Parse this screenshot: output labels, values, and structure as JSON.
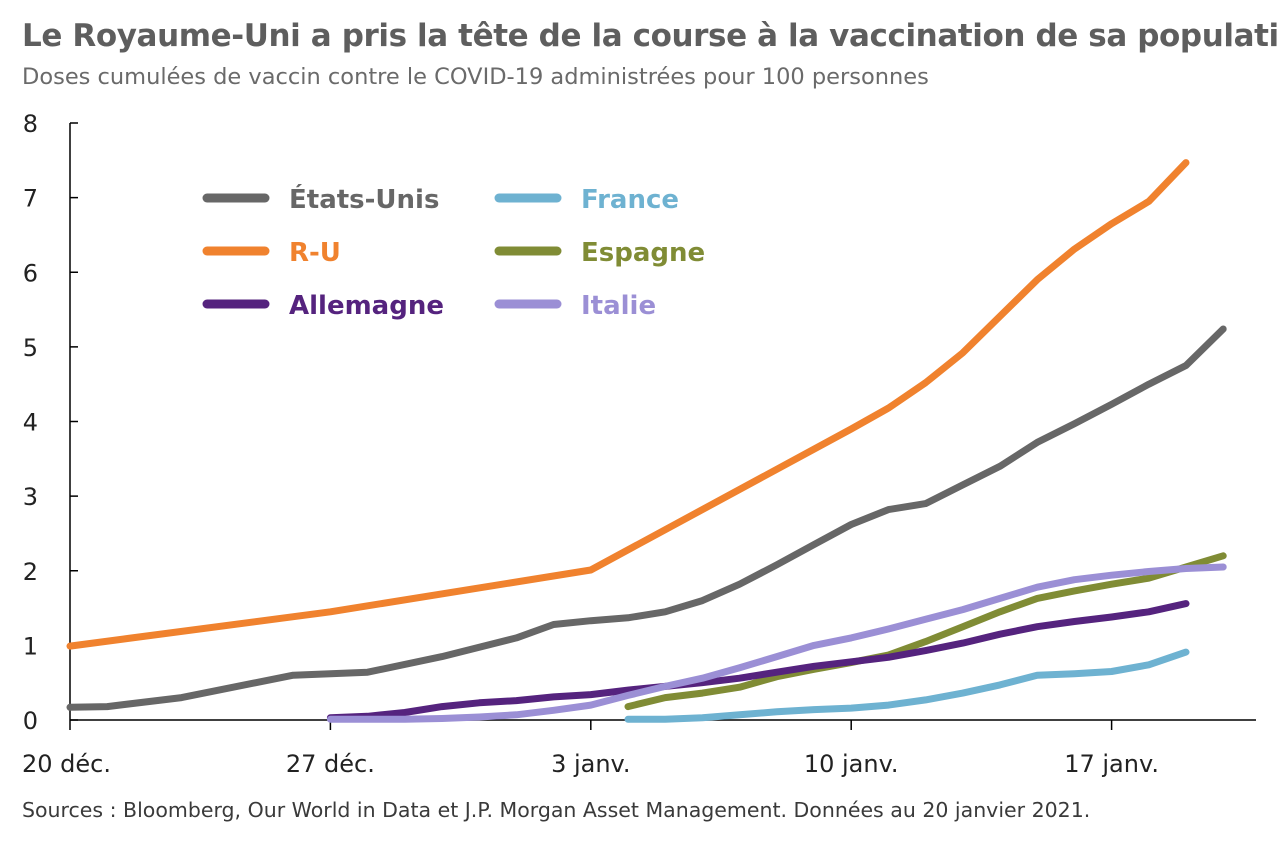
{
  "header": {
    "title": "Le Royaume-Uni a pris la tête de la course à la vaccination de sa population",
    "subtitle": "Doses cumulées de vaccin contre le COVID-19 administrées pour 100 personnes"
  },
  "footer": {
    "source": "Sources : Bloomberg, Our World in Data et J.P. Morgan Asset Management. Données au 20 janvier 2021."
  },
  "chart_data": {
    "type": "line",
    "title": "Le Royaume-Uni a pris la tête de la course à la vaccination de sa population",
    "subtitle": "Doses cumulées de vaccin contre le COVID-19 administrées pour 100 personnes",
    "xlabel": "",
    "ylabel": "",
    "x_unit": "jours depuis le 20 déc. 2020",
    "xlim": [
      0,
      31
    ],
    "ylim": [
      0,
      8
    ],
    "y_ticks": [
      0,
      1,
      2,
      3,
      4,
      5,
      6,
      7,
      8
    ],
    "x_ticks": [
      {
        "value": 0,
        "label": "20 déc."
      },
      {
        "value": 7,
        "label": "27 déc."
      },
      {
        "value": 14,
        "label": "3 janv."
      },
      {
        "value": 21,
        "label": "10 janv."
      },
      {
        "value": 28,
        "label": "17 janv."
      }
    ],
    "legend_position": "top-left",
    "series": [
      {
        "name": "États-Unis",
        "color": "#676767",
        "legend_col": 0,
        "legend_row": 0,
        "x": [
          0,
          1,
          3,
          6,
          7,
          8,
          10,
          12,
          13,
          14,
          15,
          16,
          17,
          18,
          19,
          20,
          21,
          22,
          23,
          24,
          25,
          26,
          27,
          28,
          29,
          30,
          31
        ],
        "values": [
          0.17,
          0.18,
          0.3,
          0.6,
          0.62,
          0.64,
          0.85,
          1.1,
          1.28,
          1.33,
          1.37,
          1.45,
          1.6,
          1.82,
          2.08,
          2.35,
          2.62,
          2.82,
          2.9,
          3.15,
          3.4,
          3.72,
          3.97,
          4.23,
          4.5,
          4.75,
          5.24
        ]
      },
      {
        "name": "R-U",
        "color": "#f0822e",
        "legend_col": 0,
        "legend_row": 1,
        "x": [
          0,
          7,
          14,
          21,
          22,
          23,
          24,
          25,
          26,
          27,
          28,
          29,
          30
        ],
        "values": [
          0.99,
          1.45,
          2.01,
          3.9,
          4.18,
          4.52,
          4.92,
          5.41,
          5.9,
          6.31,
          6.65,
          6.95,
          7.47
        ]
      },
      {
        "name": "Allemagne",
        "color": "#55237e",
        "legend_col": 0,
        "legend_row": 2,
        "x": [
          7,
          8,
          9,
          10,
          11,
          12,
          13,
          14,
          15,
          16,
          17,
          18,
          19,
          20,
          21,
          22,
          23,
          24,
          25,
          26,
          27,
          28,
          29,
          30
        ],
        "values": [
          0.03,
          0.05,
          0.1,
          0.18,
          0.23,
          0.26,
          0.31,
          0.34,
          0.4,
          0.45,
          0.5,
          0.56,
          0.64,
          0.72,
          0.78,
          0.84,
          0.93,
          1.03,
          1.15,
          1.25,
          1.32,
          1.38,
          1.45,
          1.56
        ]
      },
      {
        "name": "France",
        "color": "#6eb2d1",
        "legend_col": 1,
        "legend_row": 0,
        "x": [
          15,
          16,
          17,
          18,
          19,
          20,
          21,
          22,
          23,
          24,
          25,
          26,
          27,
          28,
          29,
          30
        ],
        "values": [
          0.01,
          0.01,
          0.03,
          0.07,
          0.11,
          0.14,
          0.16,
          0.2,
          0.27,
          0.36,
          0.47,
          0.6,
          0.62,
          0.65,
          0.74,
          0.91
        ]
      },
      {
        "name": "Espagne",
        "color": "#808c35",
        "legend_col": 1,
        "legend_row": 1,
        "x": [
          15,
          16,
          17,
          18,
          19,
          20,
          21,
          22,
          23,
          24,
          25,
          26,
          27,
          28,
          29,
          30,
          31
        ],
        "values": [
          0.18,
          0.3,
          0.36,
          0.44,
          0.58,
          0.68,
          0.77,
          0.87,
          1.05,
          1.25,
          1.45,
          1.63,
          1.73,
          1.82,
          1.9,
          2.05,
          2.2
        ]
      },
      {
        "name": "Italie",
        "color": "#9b8fd5",
        "legend_col": 1,
        "legend_row": 2,
        "x": [
          7,
          8,
          9,
          10,
          11,
          12,
          13,
          14,
          15,
          16,
          17,
          18,
          19,
          20,
          21,
          22,
          23,
          24,
          25,
          26,
          27,
          28,
          29,
          30,
          31
        ],
        "values": [
          0.01,
          0.01,
          0.01,
          0.02,
          0.04,
          0.07,
          0.13,
          0.2,
          0.33,
          0.45,
          0.56,
          0.7,
          0.85,
          1.0,
          1.1,
          1.22,
          1.35,
          1.48,
          1.63,
          1.78,
          1.88,
          1.94,
          1.99,
          2.03,
          2.05
        ]
      }
    ]
  }
}
